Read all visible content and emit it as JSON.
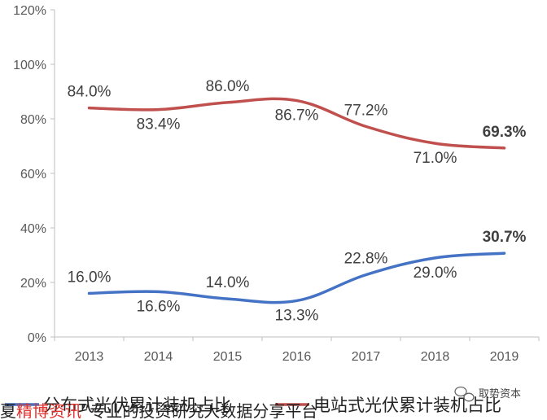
{
  "chart_data": {
    "type": "line",
    "categories": [
      "2013",
      "2014",
      "2015",
      "2016",
      "2017",
      "2018",
      "2019"
    ],
    "series": [
      {
        "name": "分布式光伏累计装机占比",
        "color": "#4472c4",
        "values": [
          16.0,
          16.6,
          14.0,
          13.3,
          22.8,
          29.0,
          30.7
        ],
        "labels": [
          "16.0%",
          "16.6%",
          "14.0%",
          "13.3%",
          "22.8%",
          "29.0%",
          "30.7%"
        ],
        "label_positions": [
          "above",
          "below",
          "above",
          "below",
          "above",
          "below",
          "above"
        ],
        "highlight_last": true,
        "highlight_color": "#c00000"
      },
      {
        "name": "电站式光伏累计装机占比",
        "color": "#c0504d",
        "values": [
          84.0,
          83.4,
          86.0,
          86.7,
          77.2,
          71.0,
          69.3
        ],
        "labels": [
          "84.0%",
          "83.4%",
          "86.0%",
          "86.7%",
          "77.2%",
          "71.0%",
          "69.3%"
        ],
        "label_positions": [
          "above",
          "below",
          "above",
          "below",
          "above",
          "below",
          "above"
        ],
        "highlight_last": true,
        "highlight_color": "#404040"
      }
    ],
    "ylim": [
      0,
      120
    ],
    "y_ticks": [
      "0%",
      "20%",
      "40%",
      "60%",
      "80%",
      "100%",
      "120%"
    ],
    "grid": false,
    "legend_position": "bottom",
    "smooth": true
  },
  "footer": {
    "source_prefix": "华夏",
    "source_red": "精博资讯",
    "source_text": "”专业的投资研究大数据分享平台"
  },
  "watermark": {
    "text": "取势资本",
    "icon": "wechat-icon"
  }
}
